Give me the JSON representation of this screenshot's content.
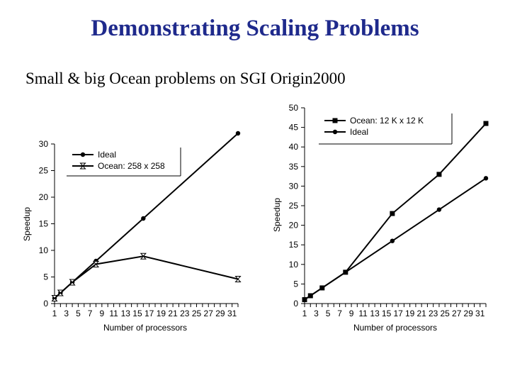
{
  "slide": {
    "title": "Demonstrating Scaling Problems",
    "subtitle": "Small & big Ocean problems on SGI Origin2000"
  },
  "colors": {
    "title": "#1f2a8c",
    "line": "#000000"
  },
  "chart_data": [
    {
      "type": "line",
      "xlabel": "Number of processors",
      "ylabel": "Speedup",
      "xlim": [
        1,
        32
      ],
      "ylim": [
        0,
        30
      ],
      "yticks": [
        0,
        5,
        10,
        15,
        20,
        25,
        30
      ],
      "xticks": [
        1,
        3,
        5,
        7,
        9,
        11,
        13,
        15,
        17,
        19,
        21,
        23,
        25,
        27,
        29,
        31
      ],
      "legend": "top-center",
      "series": [
        {
          "name": "Ideal",
          "marker": "dot",
          "x": [
            1,
            2,
            4,
            8,
            16,
            32
          ],
          "y": [
            1,
            2,
            4,
            8,
            16,
            32
          ]
        },
        {
          "name": "Ocean: 258 x 258",
          "marker": "hourglass",
          "x": [
            1,
            2,
            4,
            8,
            16,
            32
          ],
          "y": [
            1,
            2,
            4,
            7.4,
            8.9,
            4.6
          ]
        }
      ]
    },
    {
      "type": "line",
      "xlabel": "Number of processors",
      "ylabel": "Speedup",
      "xlim": [
        1,
        32
      ],
      "ylim": [
        0,
        50
      ],
      "yticks": [
        0,
        5,
        10,
        15,
        20,
        25,
        30,
        35,
        40,
        45,
        50
      ],
      "xticks": [
        1,
        3,
        5,
        7,
        9,
        11,
        13,
        15,
        17,
        19,
        21,
        23,
        25,
        27,
        29,
        31
      ],
      "legend": "top-right",
      "series": [
        {
          "name": "Ocean: 12 K x 12 K",
          "marker": "square",
          "x": [
            1,
            2,
            4,
            8,
            16,
            24,
            32
          ],
          "y": [
            1,
            2,
            4,
            8,
            23,
            33,
            46
          ]
        },
        {
          "name": "Ideal",
          "marker": "dot",
          "x": [
            1,
            2,
            4,
            8,
            16,
            24,
            32
          ],
          "y": [
            1,
            2,
            4,
            8,
            16,
            24,
            32
          ]
        }
      ]
    }
  ]
}
